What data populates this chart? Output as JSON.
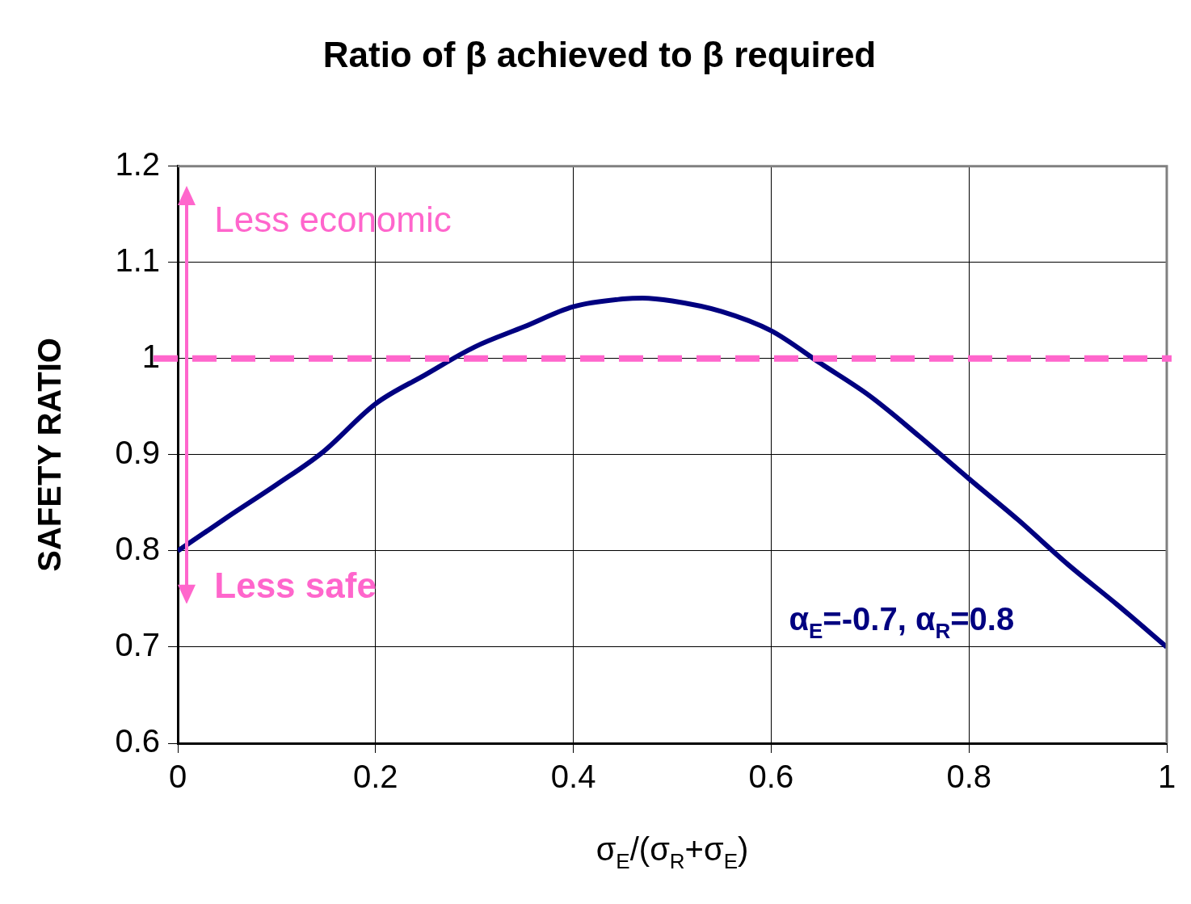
{
  "chart_data": {
    "type": "line",
    "title": "Ratio of β achieved to β required",
    "xlabel": "σ$_{E}$/(σ$_{R}$+σ$_{E}$)",
    "ylabel": "SAFETY RATIO",
    "x": [
      0,
      0.05,
      0.1,
      0.147,
      0.2,
      0.25,
      0.3,
      0.35,
      0.4,
      0.45,
      0.47,
      0.5,
      0.55,
      0.6,
      0.65,
      0.7,
      0.75,
      0.8,
      0.85,
      0.9,
      0.95,
      1
    ],
    "series": [
      {
        "color": "#000080",
        "values": [
          0.8,
          0.835,
          0.869,
          0.903,
          0.953,
          0.983,
          1.012,
          1.033,
          1.054,
          1.062,
          1.063,
          1.06,
          1.049,
          1.029,
          0.995,
          0.961,
          0.919,
          0.875,
          0.832,
          0.786,
          0.744,
          0.7
        ]
      }
    ],
    "xlim": [
      0,
      1
    ],
    "xticks": [
      0,
      0.2,
      0.4,
      0.6,
      0.8,
      1
    ],
    "ylim": [
      0.6,
      1.2
    ],
    "yticks": [
      0.6,
      0.7,
      0.8,
      0.9,
      1,
      1.1,
      1.2
    ],
    "grid": true,
    "legend": false,
    "marker": "none",
    "line_style": "solid",
    "ref_lines": [
      {
        "axis": "y",
        "value": 1,
        "color": "#ff66cc",
        "line_style": "dashed"
      }
    ],
    "annotations": [
      "Less economic",
      "Less safe",
      "α$_{E}$=-0.7, α$_{R}$=0.8"
    ]
  }
}
